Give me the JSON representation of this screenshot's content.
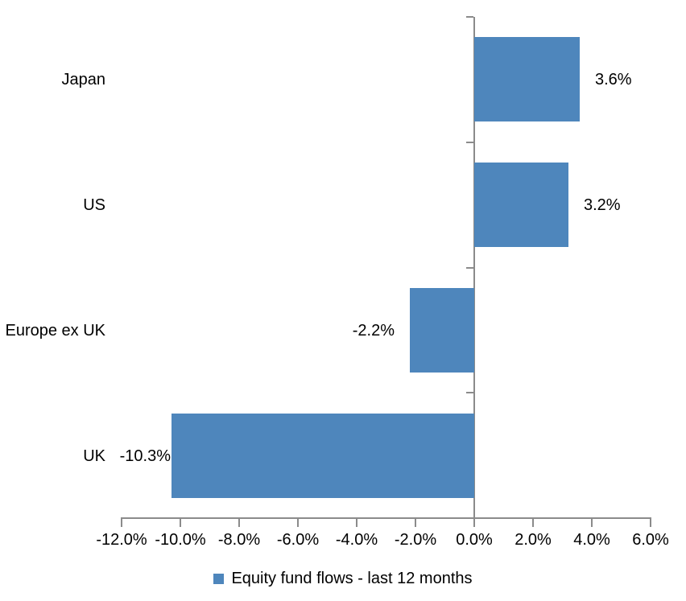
{
  "chart_data": {
    "type": "bar",
    "orientation": "horizontal",
    "categories": [
      "Japan",
      "US",
      "Europe ex UK",
      "UK"
    ],
    "values": [
      3.6,
      3.2,
      -2.2,
      -10.3
    ],
    "data_labels": [
      "3.6%",
      "3.2%",
      "-2.2%",
      "-10.3%"
    ],
    "x_axis": {
      "min": -12,
      "max": 6,
      "tick_step": 2,
      "tick_labels": [
        "-12.0%",
        "-10.0%",
        "-8.0%",
        "-6.0%",
        "-4.0%",
        "-2.0%",
        "0.0%",
        "2.0%",
        "4.0%",
        "6.0%"
      ]
    },
    "legend": {
      "label": "Equity fund flows - last 12 months",
      "position": "bottom"
    },
    "grid": false,
    "colors": {
      "bar": "#4E86BC",
      "axis": "#8B8B8B",
      "text": "#000000",
      "background": "#FFFFFF"
    }
  }
}
